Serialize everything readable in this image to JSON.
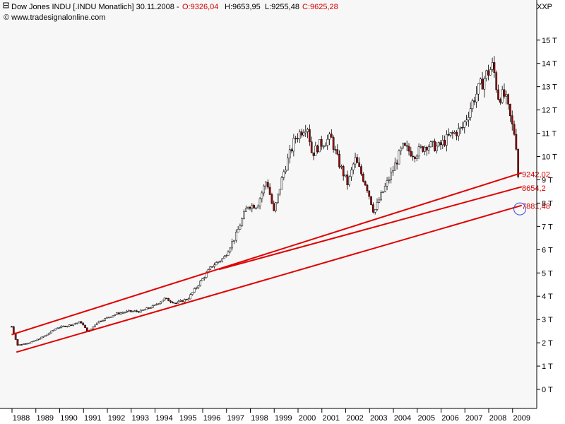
{
  "header": {
    "instrument": "Dow Jones INDU [.INDU  Monatlich] 30.11.2008 -",
    "open": "O:9326,04",
    "high": "H:9653,95",
    "low": "L:9255,48",
    "close": "C:9625,28",
    "copyright": "© www.tradesignalonline.com",
    "corner_label": "XXP"
  },
  "colors": {
    "background": "#f7f7f7",
    "candle_up": "#ffffff",
    "candle_down": "#a00000",
    "outline": "#000000",
    "trend_line": "#e00000",
    "label_red": "#d40000"
  },
  "chart_data": {
    "type": "candlestick",
    "title": "Dow Jones INDU [.INDU  Monatlich] 30.11.2008",
    "ylabel": "",
    "xlabel": "",
    "ylim": [
      -1000,
      16000
    ],
    "xlim": [
      1987.6,
      2009.3
    ],
    "y_ticks": [
      0,
      1000,
      2000,
      3000,
      4000,
      5000,
      6000,
      7000,
      8000,
      9000,
      10000,
      11000,
      12000,
      13000,
      14000,
      15000
    ],
    "y_tick_labels": [
      "0 T",
      "1 T",
      "2 T",
      "3 T",
      "4 T",
      "5 T",
      "6 T",
      "7 T",
      "8 T",
      "9 T",
      "10 T",
      "11 T",
      "12 T",
      "13 T",
      "14 T",
      "15 T"
    ],
    "x_tick_labels": [
      "1988",
      "1989",
      "1990",
      "1991",
      "1992",
      "1993",
      "1994",
      "1995",
      "1996",
      "1997",
      "1998",
      "1999",
      "2000",
      "2001",
      "2002",
      "2003",
      "2004",
      "2005",
      "2006",
      "2007",
      "2008",
      "2009"
    ],
    "price_path": [
      [
        1987.6,
        2700
      ],
      [
        1987.85,
        1900
      ],
      [
        1988.5,
        2050
      ],
      [
        1989.0,
        2300
      ],
      [
        1989.5,
        2650
      ],
      [
        1990.0,
        2750
      ],
      [
        1990.5,
        2900
      ],
      [
        1990.8,
        2450
      ],
      [
        1991.2,
        2900
      ],
      [
        1992.0,
        3250
      ],
      [
        1992.5,
        3350
      ],
      [
        1993.0,
        3350
      ],
      [
        1993.6,
        3600
      ],
      [
        1994.0,
        3900
      ],
      [
        1994.5,
        3700
      ],
      [
        1995.0,
        3900
      ],
      [
        1995.5,
        4600
      ],
      [
        1996.0,
        5300
      ],
      [
        1996.5,
        5650
      ],
      [
        1997.0,
        6600
      ],
      [
        1997.5,
        7900
      ],
      [
        1997.9,
        7900
      ],
      [
        1998.3,
        9000
      ],
      [
        1998.6,
        7600
      ],
      [
        1999.0,
        9300
      ],
      [
        1999.5,
        10800
      ],
      [
        2000.0,
        11400
      ],
      [
        2000.2,
        10100
      ],
      [
        2000.5,
        10500
      ],
      [
        2001.0,
        10800
      ],
      [
        2001.3,
        9800
      ],
      [
        2001.7,
        8800
      ],
      [
        2002.0,
        9900
      ],
      [
        2002.5,
        8700
      ],
      [
        2002.8,
        7600
      ],
      [
        2003.0,
        8100
      ],
      [
        2003.5,
        9200
      ],
      [
        2004.0,
        10400
      ],
      [
        2004.5,
        10100
      ],
      [
        2005.0,
        10500
      ],
      [
        2005.5,
        10400
      ],
      [
        2006.0,
        10900
      ],
      [
        2006.5,
        11200
      ],
      [
        2007.0,
        12500
      ],
      [
        2007.5,
        13500
      ],
      [
        2007.8,
        13900
      ],
      [
        2008.0,
        12600
      ],
      [
        2008.3,
        12600
      ],
      [
        2008.6,
        11300
      ],
      [
        2008.75,
        10800
      ],
      [
        2008.83,
        9300
      ],
      [
        2008.92,
        8800
      ]
    ],
    "trend_lines": [
      {
        "from": [
          1987.6,
          2350
        ],
        "to": [
          2009.0,
          9300
        ]
      },
      {
        "from": [
          1996.3,
          5150
        ],
        "to": [
          2009.0,
          8700
        ]
      },
      {
        "from": [
          1987.8,
          1600
        ],
        "to": [
          2009.0,
          7900
        ]
      }
    ],
    "annotations": [
      {
        "text": "9242,02",
        "value": 9242.02
      },
      {
        "text": "8654,2",
        "value": 8654.2
      },
      {
        "text": "7881,48",
        "value": 7881.48
      }
    ],
    "marker": {
      "x": 2008.92,
      "y": 7750,
      "shape": "circle"
    }
  }
}
